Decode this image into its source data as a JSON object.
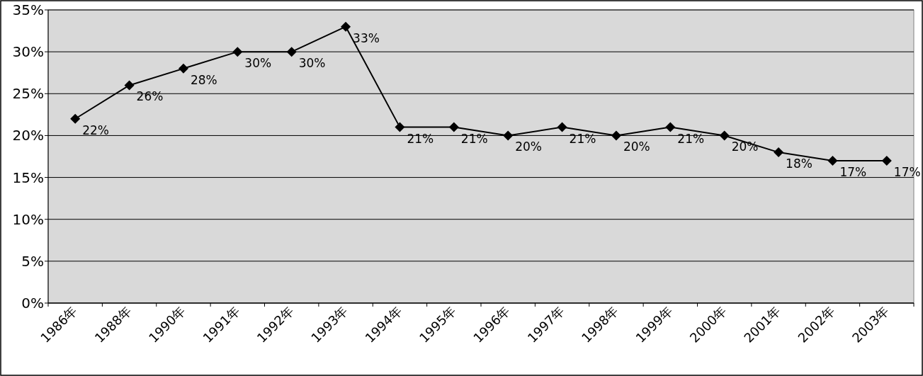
{
  "chart_data": {
    "type": "line",
    "categories": [
      "1986年",
      "1988年",
      "1990年",
      "1991年",
      "1992年",
      "1993年",
      "1994年",
      "1995年",
      "1996年",
      "1997年",
      "1998年",
      "1999年",
      "2000年",
      "2001年",
      "2002年",
      "2003年"
    ],
    "series": [
      {
        "color": "#000000",
        "values": [
          22,
          26,
          28,
          30,
          30,
          33,
          21,
          21,
          20,
          21,
          20,
          21,
          20,
          18,
          17,
          17
        ]
      }
    ],
    "ylim": [
      0,
      35
    ],
    "yticks": [
      {
        "value": 0,
        "label": "0%"
      },
      {
        "value": 5,
        "label": "5%"
      },
      {
        "value": 10,
        "label": "10%"
      },
      {
        "value": 15,
        "label": "15%"
      },
      {
        "value": 20,
        "label": "20%"
      },
      {
        "value": 25,
        "label": "25%"
      },
      {
        "value": 30,
        "label": "30%"
      },
      {
        "value": 35,
        "label": "35%"
      }
    ],
    "value_labels": [
      "22%",
      "26%",
      "28%",
      "30%",
      "30%",
      "33%",
      "21%",
      "21%",
      "20%",
      "21%",
      "20%",
      "21%",
      "20%",
      "18%",
      "17%",
      "17%"
    ],
    "grid": "y",
    "marker": "diamond",
    "line_style": "solid"
  }
}
